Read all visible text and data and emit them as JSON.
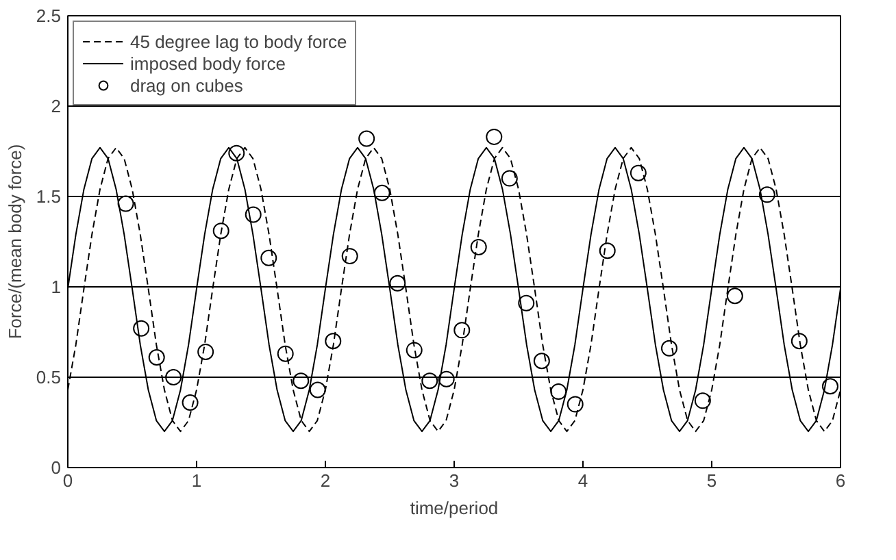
{
  "chart_data": {
    "type": "line",
    "xlabel": "time/period",
    "ylabel": "Force/(mean body force)",
    "x": [
      0,
      0.0625,
      0.125,
      0.1875,
      0.25,
      0.3125,
      0.375,
      0.4375,
      0.5,
      0.5625,
      0.625,
      0.6875,
      0.75,
      0.8125,
      0.875,
      0.9375,
      1,
      1.0625,
      1.125,
      1.1875,
      1.25,
      1.3125,
      1.375,
      1.4375,
      1.5,
      1.5625,
      1.625,
      1.6875,
      1.75,
      1.8125,
      1.875,
      1.9375,
      2,
      2.0625,
      2.125,
      2.1875,
      2.25,
      2.3125,
      2.375,
      2.4375,
      2.5,
      2.5625,
      2.625,
      2.6875,
      2.75,
      2.8125,
      2.875,
      2.9375,
      3,
      3.0625,
      3.125,
      3.1875,
      3.25,
      3.3125,
      3.375,
      3.4375,
      3.5,
      3.5625,
      3.625,
      3.6875,
      3.75,
      3.8125,
      3.875,
      3.9375,
      4,
      4.0625,
      4.125,
      4.1875,
      4.25,
      4.3125,
      4.375,
      4.4375,
      4.5,
      4.5625,
      4.625,
      4.6875,
      4.75,
      4.8125,
      4.875,
      4.9375,
      5,
      5.0625,
      5.125,
      5.1875,
      5.25,
      5.3125,
      5.375,
      5.4375,
      5.5,
      5.5625,
      5.625,
      5.6875,
      5.75,
      5.8125,
      5.875,
      5.9375,
      6
    ],
    "series": [
      {
        "name": "45 degree lag to body force",
        "color": "#000000",
        "line_style": "dashed",
        "marker": "none",
        "values": [
          0.43,
          0.68,
          0.99,
          1.29,
          1.54,
          1.71,
          1.77,
          1.71,
          1.54,
          1.29,
          0.99,
          0.68,
          0.43,
          0.26,
          0.2,
          0.26,
          0.43,
          0.68,
          0.99,
          1.29,
          1.54,
          1.71,
          1.77,
          1.71,
          1.54,
          1.29,
          0.99,
          0.68,
          0.43,
          0.26,
          0.2,
          0.26,
          0.43,
          0.68,
          0.99,
          1.29,
          1.54,
          1.71,
          1.77,
          1.71,
          1.54,
          1.29,
          0.99,
          0.68,
          0.43,
          0.26,
          0.2,
          0.26,
          0.43,
          0.68,
          0.99,
          1.29,
          1.54,
          1.71,
          1.77,
          1.71,
          1.54,
          1.29,
          0.99,
          0.68,
          0.43,
          0.26,
          0.2,
          0.26,
          0.43,
          0.68,
          0.99,
          1.29,
          1.54,
          1.71,
          1.77,
          1.71,
          1.54,
          1.29,
          0.99,
          0.68,
          0.43,
          0.26,
          0.2,
          0.26,
          0.43,
          0.68,
          0.99,
          1.29,
          1.54,
          1.71,
          1.77,
          1.71,
          1.54,
          1.29,
          0.99,
          0.68,
          0.43,
          0.26,
          0.2,
          0.26,
          0.43
        ]
      },
      {
        "name": "imposed body force",
        "color": "#000000",
        "line_style": "solid",
        "marker": "none",
        "values": [
          0.99,
          1.29,
          1.54,
          1.71,
          1.77,
          1.71,
          1.54,
          1.29,
          0.99,
          0.68,
          0.43,
          0.26,
          0.2,
          0.26,
          0.43,
          0.68,
          0.99,
          1.29,
          1.54,
          1.71,
          1.77,
          1.71,
          1.54,
          1.29,
          0.99,
          0.68,
          0.43,
          0.26,
          0.2,
          0.26,
          0.43,
          0.68,
          0.99,
          1.29,
          1.54,
          1.71,
          1.77,
          1.71,
          1.54,
          1.29,
          0.99,
          0.68,
          0.43,
          0.26,
          0.2,
          0.26,
          0.43,
          0.68,
          0.99,
          1.29,
          1.54,
          1.71,
          1.77,
          1.71,
          1.54,
          1.29,
          0.99,
          0.68,
          0.43,
          0.26,
          0.2,
          0.26,
          0.43,
          0.68,
          0.99,
          1.29,
          1.54,
          1.71,
          1.77,
          1.71,
          1.54,
          1.29,
          0.99,
          0.68,
          0.43,
          0.26,
          0.2,
          0.26,
          0.43,
          0.68,
          0.99,
          1.29,
          1.54,
          1.71,
          1.77,
          1.71,
          1.54,
          1.29,
          0.99,
          0.68,
          0.43,
          0.26,
          0.2,
          0.26,
          0.43,
          0.68,
          0.99
        ]
      },
      {
        "name": "drag on cubes",
        "type": "scatter",
        "color": "#000000",
        "marker": "circle",
        "x": [
          0.45,
          0.57,
          0.69,
          0.82,
          0.95,
          1.07,
          1.19,
          1.31,
          1.44,
          1.56,
          1.69,
          1.81,
          1.94,
          2.06,
          2.19,
          2.32,
          2.44,
          2.56,
          2.69,
          2.81,
          2.94,
          3.06,
          3.19,
          3.31,
          3.43,
          3.56,
          3.68,
          3.81,
          3.94,
          4.19,
          4.43,
          4.67,
          4.93,
          5.18,
          5.43,
          5.68,
          5.92
        ],
        "values": [
          1.46,
          0.77,
          0.61,
          0.5,
          0.36,
          0.64,
          1.31,
          1.74,
          1.4,
          1.16,
          0.63,
          0.48,
          0.43,
          0.7,
          1.17,
          1.82,
          1.52,
          1.02,
          0.65,
          0.48,
          0.49,
          0.76,
          1.22,
          1.83,
          1.6,
          0.91,
          0.59,
          0.42,
          0.35,
          1.2,
          1.63,
          0.66,
          0.37,
          0.95,
          1.51,
          0.7,
          0.45
        ]
      }
    ],
    "xlim": [
      0,
      6
    ],
    "xticks": [
      0,
      1,
      2,
      3,
      4,
      5,
      6
    ],
    "ylim": [
      0,
      2.5
    ],
    "yticks": [
      0,
      0.5,
      1,
      1.5,
      2,
      2.5
    ],
    "grid": "y",
    "legend": "top left"
  }
}
